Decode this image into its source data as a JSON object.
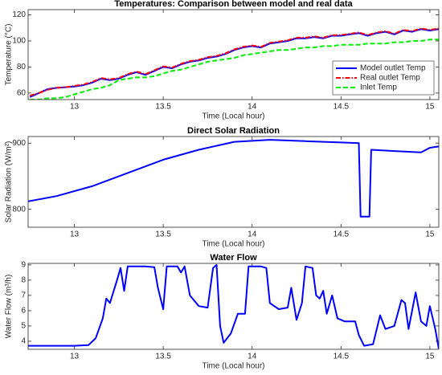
{
  "chart_data": [
    {
      "type": "line",
      "title": "Temperatures: Comparison between model and real data",
      "xlabel": "Time (Local hour)",
      "ylabel": "Temperature (°C)",
      "x": [
        12.75,
        12.8,
        12.85,
        12.9,
        12.95,
        13.0,
        13.05,
        13.1,
        13.15,
        13.2,
        13.25,
        13.3,
        13.35,
        13.4,
        13.45,
        13.5,
        13.55,
        13.6,
        13.65,
        13.7,
        13.75,
        13.8,
        13.85,
        13.9,
        13.95,
        14.0,
        14.05,
        14.1,
        14.15,
        14.2,
        14.25,
        14.3,
        14.35,
        14.4,
        14.45,
        14.5,
        14.55,
        14.6,
        14.65,
        14.7,
        14.75,
        14.8,
        14.85,
        14.9,
        14.95,
        15.0,
        15.05
      ],
      "series": [
        {
          "name": "Model outlet Temp",
          "color": "#0000ff",
          "linestyle": "solid",
          "values": [
            57,
            60,
            63,
            64,
            64.5,
            65,
            66,
            68,
            71,
            70,
            71,
            74,
            76,
            74,
            77,
            80,
            79,
            82,
            84,
            85,
            87,
            88,
            90,
            93,
            95,
            96,
            95,
            98,
            99,
            100,
            102,
            102,
            103,
            102,
            104,
            104,
            105,
            106,
            104,
            106,
            107,
            105,
            108,
            107,
            109,
            108,
            109
          ]
        },
        {
          "name": "Real outlet Temp",
          "color": "#ff0000",
          "linestyle": "dashdot",
          "values": [
            58,
            60,
            62.5,
            64,
            64.5,
            65.5,
            66.5,
            68.5,
            71.5,
            70.5,
            71.5,
            74.5,
            76.5,
            74.5,
            77.5,
            80.5,
            79.5,
            82.5,
            84.5,
            85.5,
            87.5,
            88.5,
            90.5,
            93.5,
            95.5,
            96.5,
            95.5,
            98.5,
            99.5,
            100.5,
            102.5,
            102.5,
            103.5,
            102.5,
            104.5,
            104.5,
            105.5,
            106.5,
            104.5,
            106.5,
            107.5,
            105.5,
            108.5,
            107.5,
            109.5,
            108.5,
            109.5
          ]
        },
        {
          "name": "Inlet Temp",
          "color": "#00ee00",
          "linestyle": "dashed",
          "values": [
            55,
            55,
            56,
            56,
            57,
            59,
            61,
            63,
            64,
            66,
            70,
            71,
            72,
            72,
            73,
            75,
            77,
            78,
            80,
            82,
            84,
            85,
            86,
            87,
            89,
            90,
            91,
            92,
            93,
            93,
            94,
            95,
            95,
            96,
            96,
            97,
            97,
            97,
            98,
            98,
            98,
            99,
            99,
            100,
            100,
            101,
            101
          ]
        }
      ],
      "xlim": [
        12.74,
        15.05
      ],
      "xticks": [
        13,
        13.5,
        14,
        14.5,
        15
      ],
      "ylim": [
        55,
        124
      ],
      "yticks": [
        60,
        80,
        100,
        120
      ],
      "legend": "lower right"
    },
    {
      "type": "line",
      "title": "Direct Solar Radiation",
      "xlabel": "Time (Local hour)",
      "ylabel": "Solar Radiation (W/m²)",
      "x": [
        12.74,
        12.9,
        13.1,
        13.3,
        13.5,
        13.7,
        13.9,
        14.1,
        14.3,
        14.5,
        14.6,
        14.61,
        14.66,
        14.67,
        14.8,
        14.95,
        15.0,
        15.05
      ],
      "series": [
        {
          "color": "#0000ff",
          "linestyle": "solid",
          "values": [
            812,
            820,
            835,
            855,
            875,
            890,
            902,
            905,
            903,
            901,
            900,
            789,
            789,
            890,
            888,
            886,
            893,
            895
          ]
        }
      ],
      "xlim": [
        12.74,
        15.05
      ],
      "xticks": [
        13,
        13.5,
        14,
        14.5,
        15
      ],
      "ylim": [
        773,
        910
      ],
      "yticks": [
        800,
        900
      ]
    },
    {
      "type": "line",
      "title": "Water Flow",
      "xlabel": "Time (Local hour)",
      "ylabel": "Water Flow (m³/h)",
      "x": [
        12.74,
        13.0,
        13.08,
        13.12,
        13.16,
        13.18,
        13.2,
        13.24,
        13.26,
        13.28,
        13.3,
        13.4,
        13.45,
        13.47,
        13.5,
        13.52,
        13.58,
        13.6,
        13.62,
        13.65,
        13.7,
        13.75,
        13.78,
        13.8,
        13.82,
        13.84,
        13.88,
        13.92,
        13.96,
        13.98,
        14.05,
        14.08,
        14.1,
        14.15,
        14.2,
        14.22,
        14.25,
        14.28,
        14.3,
        14.34,
        14.36,
        14.38,
        14.4,
        14.42,
        14.45,
        14.48,
        14.52,
        14.58,
        14.6,
        14.63,
        14.68,
        14.72,
        14.75,
        14.8,
        14.84,
        14.86,
        14.88,
        14.92,
        14.95,
        14.98,
        15.0,
        15.03,
        15.05
      ],
      "series": [
        {
          "color": "#0000ff",
          "linestyle": "solid",
          "values": [
            3.7,
            3.7,
            3.75,
            4.2,
            5.5,
            6.8,
            6.5,
            8.0,
            8.8,
            7.3,
            8.9,
            8.9,
            8.85,
            7.5,
            6.1,
            8.9,
            8.9,
            8.5,
            8.9,
            7.0,
            6.3,
            6.2,
            8.8,
            9.0,
            5.0,
            3.9,
            4.5,
            5.8,
            5.8,
            8.9,
            8.9,
            8.8,
            6.5,
            6.1,
            6.2,
            7.5,
            5.4,
            6.5,
            8.9,
            8.8,
            7.0,
            6.8,
            7.3,
            5.8,
            7.0,
            5.5,
            5.3,
            5.3,
            4.4,
            3.7,
            3.8,
            5.7,
            4.8,
            5.0,
            6.7,
            6.5,
            4.8,
            7.2,
            5.3,
            5.0,
            6.3,
            4.8,
            3.5
          ]
        }
      ],
      "xlim": [
        12.74,
        15.05
      ],
      "xticks": [
        13,
        13.5,
        14,
        14.5,
        15
      ],
      "ylim": [
        3.47,
        9.1
      ],
      "yticks": [
        4,
        5,
        6,
        7,
        8,
        9
      ]
    }
  ]
}
